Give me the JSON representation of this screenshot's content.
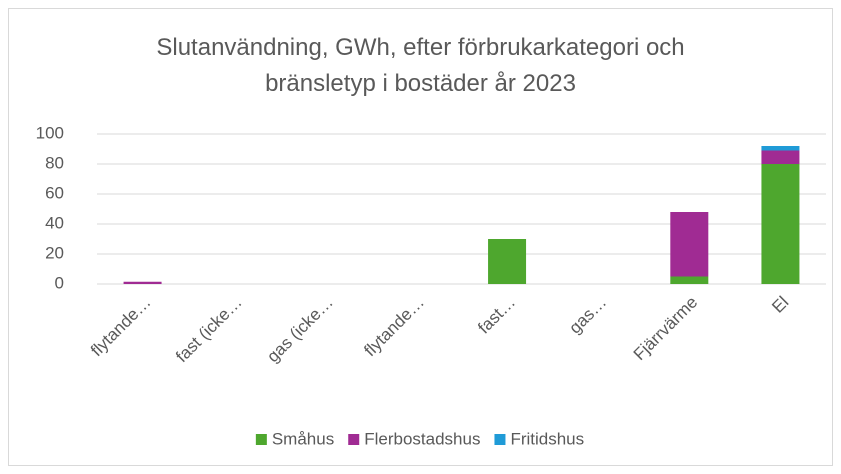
{
  "chart_data": {
    "type": "stacked_bar",
    "title": "Slutanvändning, GWh, efter förbrukarkategori och bränsletyp i bostäder år 2023",
    "categories": [
      "flytande…",
      "fast (icke…",
      "gas (icke…",
      "flytande…",
      "fast…",
      "gas…",
      "Fjärrvärme",
      "El"
    ],
    "series": [
      {
        "name": "Småhus",
        "color": "#4ea72e",
        "values": [
          0,
          0,
          0,
          0,
          30,
          0,
          5,
          80
        ]
      },
      {
        "name": "Flerbostadshus",
        "color": "#a02b93",
        "values": [
          1.5,
          0,
          0,
          0,
          0,
          0,
          43,
          9
        ]
      },
      {
        "name": "Fritidshus",
        "color": "#1f9bd7",
        "values": [
          0,
          0,
          0,
          0,
          0,
          0,
          0,
          3
        ]
      }
    ],
    "ylim": [
      0,
      100
    ],
    "yticks": [
      0,
      20,
      40,
      60,
      80,
      100
    ],
    "grid": true,
    "legend": "bottom"
  }
}
